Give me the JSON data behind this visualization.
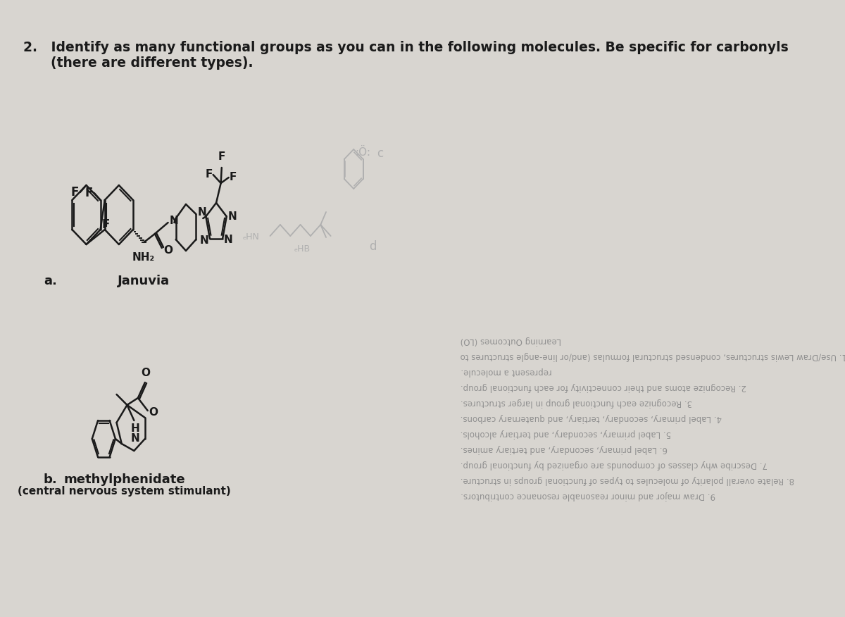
{
  "background_color": "#d8d5d0",
  "title_text": "2.   Identify as many functional groups as you can in the following molecules. Be specific for carbonyls\n      (there are different types).",
  "label_a": "a.",
  "label_b": "b.",
  "januvia_label": "Januvia",
  "methylphenidate_label": "methylphenidate",
  "stimulant_label": "(central nervous system stimulant)",
  "back_text_lines": [
    "Learning Outcomes (LO)",
    "1. Use/Draw Lewis structures, condensed structural formulas (and/or line-angle structures to",
    "   represent a molecule.",
    "2. Recognize atoms and their connectivity for each functional group.",
    "3. Recognize each functional group in larger structures.",
    "4. Label primary, secondary, tertiary, and quaternary carbons.",
    "5. Label primary, secondary, and tertiary alcohols.",
    "6. Label primary, secondary, and tertiary amines.",
    "7. Describe why classes of compounds are organized by functional group.",
    "8. Relate overall polarity of molecules to types of functional groups in structure.",
    "9. Draw major and minor reasonable resonance contributors."
  ],
  "back_text_color": "#909090",
  "main_text_color": "#1a1a1a"
}
